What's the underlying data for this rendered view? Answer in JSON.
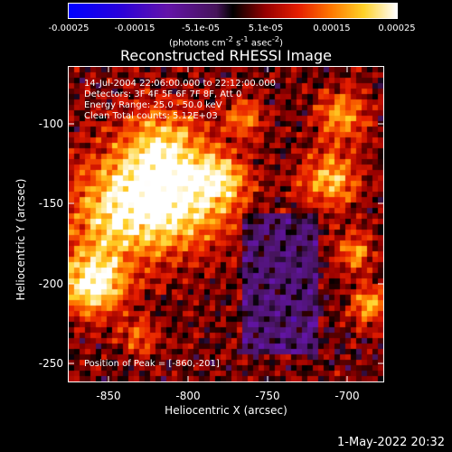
{
  "colorbar": {
    "ticks": [
      "-0.00025",
      "-0.00015",
      "-5.1e-05",
      "5.1e-05",
      "0.00015",
      "0.00025"
    ],
    "units_html": "(photons cm<sup>-2</sup> s<sup>-1</sup> asec<sup>-2</sup>)",
    "range": [
      -0.00025,
      0.00025
    ]
  },
  "image": {
    "title": "Reconstructed RHESSI Image",
    "annotations": [
      "14-Jul-2004 22:06:00.000 to 22:12:00.000",
      "Detectors: 3F 4F 5F 6F 7F 8F, Att 0",
      "Energy Range: 25.0 - 50.0 keV",
      "Clean    Total counts: 5.12E+03"
    ],
    "peak_text": "Position of Peak = [-860,-201]",
    "xaxis": {
      "label": "Heliocentric X (arcsec)",
      "ticks": [
        "-850",
        "-800",
        "-750",
        "-700"
      ],
      "range": [
        -875,
        -680
      ]
    },
    "yaxis": {
      "label": "Heliocentric Y (arcsec)",
      "ticks": [
        "-100",
        "-150",
        "-200",
        "-250"
      ],
      "range": [
        -262,
        -67
      ]
    }
  },
  "footer": {
    "timestamp": "1-May-2022 20:32"
  }
}
